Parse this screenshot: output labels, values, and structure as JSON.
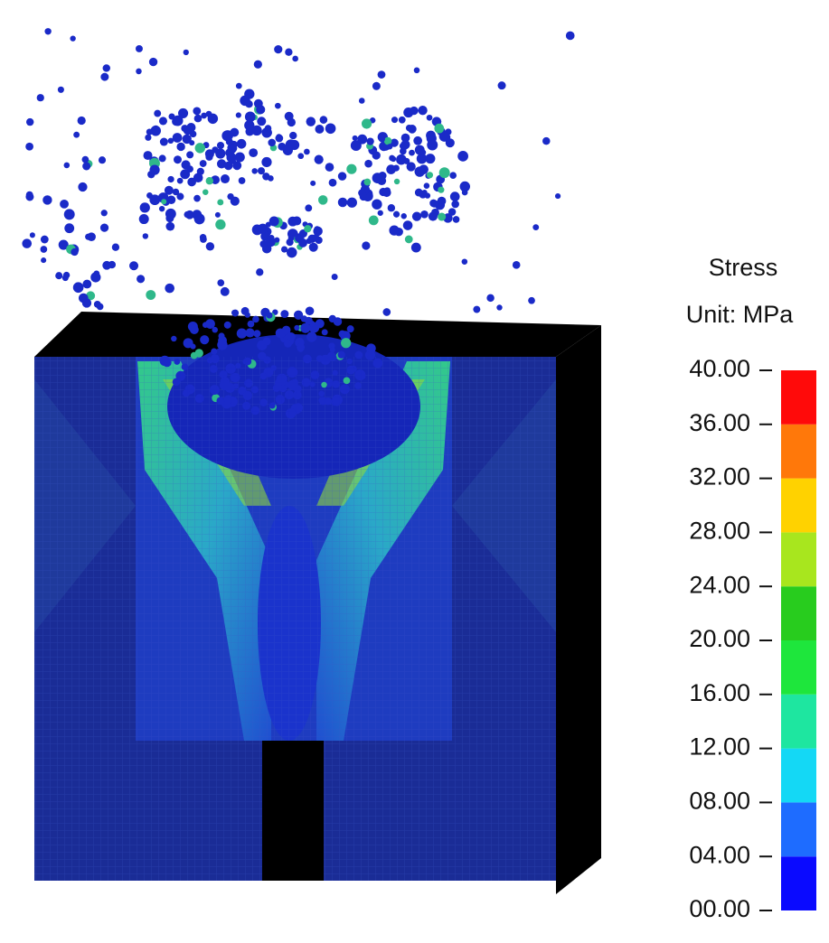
{
  "legend": {
    "title": "Stress",
    "unit": "Unit: MPa",
    "ticks": [
      {
        "value": 0,
        "label": "00.00"
      },
      {
        "value": 4,
        "label": "04.00"
      },
      {
        "value": 8,
        "label": "08.00"
      },
      {
        "value": 12,
        "label": "12.00"
      },
      {
        "value": 16,
        "label": "16.00"
      },
      {
        "value": 20,
        "label": "20.00"
      },
      {
        "value": 24,
        "label": "24.00"
      },
      {
        "value": 28,
        "label": "28.00"
      },
      {
        "value": 32,
        "label": "32.00"
      },
      {
        "value": 36,
        "label": "36.00"
      },
      {
        "value": 40,
        "label": "40.00"
      }
    ],
    "colors": [
      "#0a0aff",
      "#1e6cff",
      "#14d8f5",
      "#1ee6a0",
      "#1ee63c",
      "#28cc1e",
      "#a8e61e",
      "#ffd200",
      "#ff780a",
      "#ff0a0a"
    ]
  }
}
